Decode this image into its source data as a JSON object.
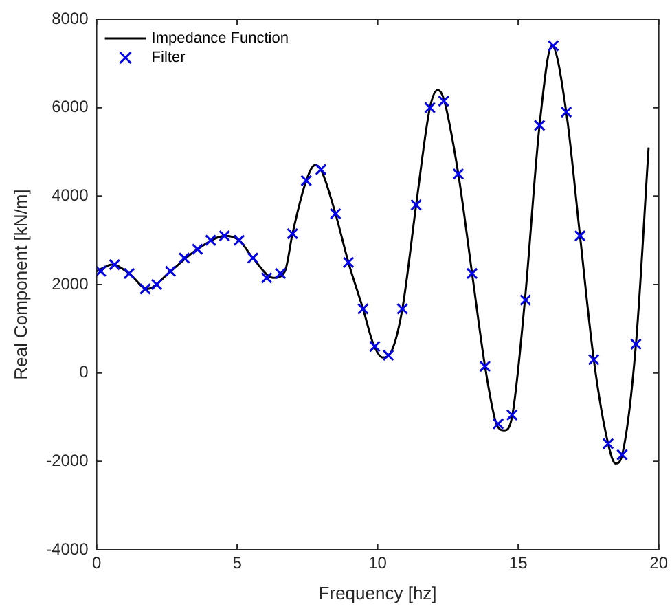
{
  "chart_data": {
    "type": "line",
    "xlabel": "Frequency [hz]",
    "ylabel": "Real Component [kN/m]",
    "xlim": [
      0,
      20
    ],
    "xticks": [
      0,
      5,
      10,
      15,
      20
    ],
    "ylim": [
      -4000,
      8000
    ],
    "yticks": [
      -4000,
      -2000,
      0,
      2000,
      4000,
      6000,
      8000
    ],
    "grid": false,
    "legend": "top left",
    "series": [
      {
        "name": "Impedance Function",
        "color": "#000000",
        "marker": "none",
        "line_style": "solid",
        "x": [
          0,
          0.15,
          0.55,
          1.16,
          1.8,
          2.63,
          3.59,
          4.6,
          5.07,
          5.56,
          6.3,
          6.7,
          6.97,
          7.46,
          7.77,
          7.98,
          8.5,
          8.96,
          9.48,
          9.85,
          10.18,
          10.5,
          10.88,
          11.37,
          11.86,
          12.14,
          12.35,
          12.87,
          13.36,
          13.82,
          14.2,
          14.5,
          14.78,
          15.24,
          15.76,
          16.2,
          16.71,
          17.2,
          17.69,
          18.2,
          18.47,
          18.7,
          19.19,
          19.64
        ],
        "values": [
          2300,
          2350,
          2450,
          2250,
          1900,
          2300,
          2800,
          3100,
          3000,
          2600,
          2150,
          2300,
          3150,
          4350,
          4700,
          4600,
          3600,
          2500,
          1450,
          650,
          350,
          500,
          1450,
          3800,
          6000,
          6400,
          6200,
          4500,
          2250,
          150,
          -1100,
          -1300,
          -1000,
          1650,
          5600,
          7400,
          5900,
          3100,
          300,
          -1600,
          -2050,
          -1850,
          650,
          5100
        ]
      },
      {
        "name": "Filter",
        "type": "scatter",
        "color": "#0000ff",
        "marker": "cross",
        "x": [
          0.15,
          0.64,
          1.16,
          1.73,
          2.14,
          2.63,
          3.12,
          3.59,
          4.06,
          4.55,
          5.07,
          5.56,
          6.05,
          6.54,
          6.97,
          7.46,
          7.98,
          8.5,
          8.96,
          9.48,
          9.9,
          10.38,
          10.88,
          11.37,
          11.86,
          12.35,
          12.87,
          13.36,
          13.82,
          14.29,
          14.78,
          15.26,
          15.76,
          16.25,
          16.71,
          17.2,
          17.69,
          18.2,
          18.7,
          19.19
        ],
        "values": [
          2300,
          2450,
          2250,
          1900,
          2000,
          2300,
          2600,
          2800,
          3000,
          3100,
          3000,
          2600,
          2150,
          2250,
          3150,
          4350,
          4600,
          3600,
          2500,
          1450,
          600,
          400,
          1450,
          3800,
          6000,
          6150,
          4500,
          2250,
          150,
          -1150,
          -950,
          1650,
          5600,
          7400,
          5900,
          3100,
          300,
          -1600,
          -1850,
          650
        ]
      }
    ]
  }
}
